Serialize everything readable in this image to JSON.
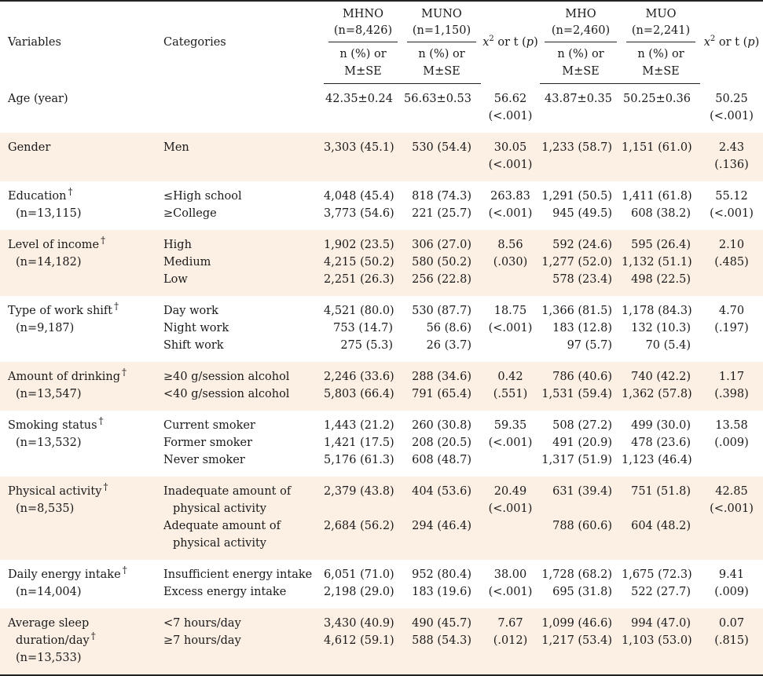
{
  "header": {
    "variables": "Variables",
    "categories": "Categories",
    "groups": [
      {
        "name": "MHNO",
        "n": "(n=8,426)"
      },
      {
        "name": "MUNO",
        "n": "(n=1,150)"
      },
      {
        "name": "MHO",
        "n": "(n=2,460)"
      },
      {
        "name": "MUO",
        "n": "(n=2,241)"
      }
    ],
    "stat_label_x": "x",
    "stat_label_sup": "2",
    "stat_label_rest": " or t (",
    "stat_label_p": "p",
    "stat_label_close": ")",
    "sub_line1": "n (%) or",
    "sub_line2": "M±SE"
  },
  "dagger": "†",
  "rows": [
    {
      "var": [
        "Age (year)"
      ],
      "cats": [
        ""
      ],
      "mhno": [
        "42.35±0.24"
      ],
      "muno": [
        "56.63±0.53"
      ],
      "stat1": [
        "56.62",
        "(<.001)"
      ],
      "mho": [
        "43.87±0.35"
      ],
      "muo": [
        "50.25±0.36"
      ],
      "stat2": [
        "50.25",
        "(<.001)"
      ]
    },
    {
      "var": [
        "Gender"
      ],
      "cats": [
        "Men"
      ],
      "mhno": [
        "3,303 (45.1)"
      ],
      "muno": [
        "530 (54.4)"
      ],
      "stat1": [
        "30.05",
        "(<.001)"
      ],
      "mho": [
        "1,233 (58.7)"
      ],
      "muo": [
        "1,151 (61.0)"
      ],
      "stat2": [
        "2.43",
        "(.136)"
      ]
    },
    {
      "var": [
        "Education",
        "(n=13,115)"
      ],
      "cats": [
        "≤High school",
        "≥College"
      ],
      "mhno": [
        "4,048 (45.4)",
        "3,773 (54.6)"
      ],
      "muno": [
        "818 (74.3)",
        "221 (25.7)"
      ],
      "stat1": [
        "263.83",
        "(<.001)"
      ],
      "mho": [
        "1,291 (50.5)",
        "945 (49.5)"
      ],
      "muo": [
        "1,411 (61.8)",
        "608 (38.2)"
      ],
      "stat2": [
        "55.12",
        "(<.001)"
      ]
    },
    {
      "var": [
        "Level of income",
        "(n=14,182)"
      ],
      "cats": [
        "High",
        "Medium",
        "Low"
      ],
      "mhno": [
        "1,902 (23.5)",
        "4,215 (50.2)",
        "2,251 (26.3)"
      ],
      "muno": [
        "306 (27.0)",
        "580 (50.2)",
        "256 (22.8)"
      ],
      "stat1": [
        "8.56",
        "(.030)"
      ],
      "mho": [
        "592 (24.6)",
        "1,277 (52.0)",
        "578 (23.4)"
      ],
      "muo": [
        "595 (26.4)",
        "1,132 (51.1)",
        "498 (22.5)"
      ],
      "stat2": [
        "2.10",
        "(.485)"
      ]
    },
    {
      "var": [
        "Type of work shift",
        "(n=9,187)"
      ],
      "cats": [
        "Day work",
        "Night work",
        "Shift work"
      ],
      "mhno": [
        "4,521 (80.0)",
        "753 (14.7)",
        "275 (5.3)"
      ],
      "muno": [
        "530 (87.7)",
        "56 (8.6)",
        "26 (3.7)"
      ],
      "stat1": [
        "18.75",
        "(<.001)"
      ],
      "mho": [
        "1,366 (81.5)",
        "183 (12.8)",
        "97 (5.7)"
      ],
      "muo": [
        "1,178 (84.3)",
        "132 (10.3)",
        "70 (5.4)"
      ],
      "stat2": [
        "4.70",
        "(.197)"
      ]
    },
    {
      "var": [
        "Amount of drinking",
        "(n=13,547)"
      ],
      "cats": [
        "≥40 g/session alcohol",
        "<40 g/session alcohol"
      ],
      "mhno": [
        "2,246 (33.6)",
        "5,803 (66.4)"
      ],
      "muno": [
        "288 (34.6)",
        "791 (65.4)"
      ],
      "stat1": [
        "0.42",
        "(.551)"
      ],
      "mho": [
        "786 (40.6)",
        "1,531 (59.4)"
      ],
      "muo": [
        "740 (42.2)",
        "1,362 (57.8)"
      ],
      "stat2": [
        "1.17",
        "(.398)"
      ]
    },
    {
      "var": [
        "Smoking status",
        "(n=13,532)"
      ],
      "cats": [
        "Current smoker",
        "Former smoker",
        "Never smoker"
      ],
      "mhno": [
        "1,443 (21.2)",
        "1,421 (17.5)",
        "5,176 (61.3)"
      ],
      "muno": [
        "260 (30.8)",
        "208 (20.5)",
        "608 (48.7)"
      ],
      "stat1": [
        "59.35",
        "(<.001)"
      ],
      "mho": [
        "508 (27.2)",
        "491 (20.9)",
        "1,317 (51.9)"
      ],
      "muo": [
        "499 (30.0)",
        "478 (23.6)",
        "1,123 (46.4)"
      ],
      "stat2": [
        "13.58",
        "(.009)"
      ]
    },
    {
      "var": [
        "Physical activity",
        "(n=8,535)"
      ],
      "cats": [
        "Inadequate amount of",
        "physical activity",
        "Adequate amount of",
        "physical activity"
      ],
      "mhno": [
        "2,379 (43.8)",
        "",
        "2,684 (56.2)",
        ""
      ],
      "muno": [
        "404 (53.6)",
        "",
        "294 (46.4)",
        ""
      ],
      "stat1": [
        "20.49",
        "(<.001)"
      ],
      "mho": [
        "631 (39.4)",
        "",
        "788 (60.6)",
        ""
      ],
      "muo": [
        "751 (51.8)",
        "",
        "604 (48.2)",
        ""
      ],
      "stat2": [
        "42.85",
        "(<.001)"
      ]
    },
    {
      "var": [
        "Daily energy intake",
        "(n=14,004)"
      ],
      "cats": [
        "Insufficient energy intake",
        "Excess energy intake"
      ],
      "mhno": [
        "6,051 (71.0)",
        "2,198 (29.0)"
      ],
      "muno": [
        "952 (80.4)",
        "183 (19.6)"
      ],
      "stat1": [
        "38.00",
        "(<.001)"
      ],
      "mho": [
        "1,728 (68.2)",
        "695 (31.8)"
      ],
      "muo": [
        "1,675 (72.3)",
        "522 (27.7)"
      ],
      "stat2": [
        "9.41",
        "(.009)"
      ]
    },
    {
      "var": [
        "Average sleep",
        "duration/day",
        "(n=13,533)"
      ],
      "cats": [
        "<7 hours/day",
        "≥7 hours/day"
      ],
      "mhno": [
        "3,430 (40.9)",
        "4,612 (59.1)"
      ],
      "muno": [
        "490 (45.7)",
        "588 (54.3)"
      ],
      "stat1": [
        "7.67",
        "(.012)"
      ],
      "mho": [
        "1,099 (46.6)",
        "1,217 (53.4)"
      ],
      "muo": [
        "994 (47.0)",
        "1,103 (53.0)"
      ],
      "stat2": [
        "0.07",
        "(.815)"
      ]
    }
  ]
}
